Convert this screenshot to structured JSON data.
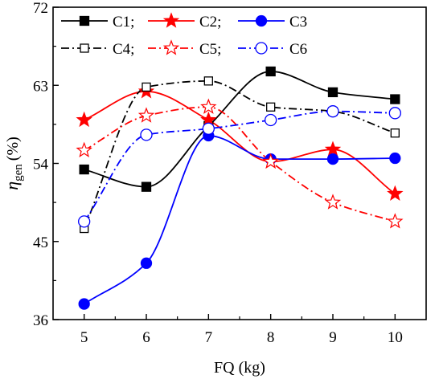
{
  "chart_data": {
    "type": "line",
    "xlabel": "FQ (kg)",
    "ylabel_main": "η",
    "ylabel_sub": "gen",
    "ylabel_unit": "(%)",
    "x": [
      5,
      6,
      7,
      8,
      9,
      10
    ],
    "xlim": [
      4.5,
      10.5
    ],
    "ylim": [
      36,
      72
    ],
    "yticks": [
      36,
      45,
      54,
      63,
      72
    ],
    "xticks": [
      5,
      6,
      7,
      8,
      9,
      10
    ],
    "legend_position": "top",
    "series": [
      {
        "name": "C1;",
        "color": "#000000",
        "marker": "square",
        "filled": true,
        "line_style": "solid",
        "values": [
          53.3,
          51.3,
          58.3,
          64.6,
          62.2,
          61.4
        ]
      },
      {
        "name": "C2;",
        "color": "#ff0000",
        "marker": "star",
        "filled": true,
        "line_style": "solid",
        "values": [
          59.0,
          62.3,
          59.0,
          54.2,
          55.6,
          50.5
        ]
      },
      {
        "name": "C3",
        "color": "#0000ff",
        "marker": "circle",
        "filled": true,
        "line_style": "solid",
        "values": [
          37.8,
          42.5,
          57.2,
          54.5,
          54.5,
          54.6
        ]
      },
      {
        "name": "C4;",
        "color": "#000000",
        "marker": "square",
        "filled": false,
        "line_style": "dashdot",
        "values": [
          46.5,
          62.8,
          63.5,
          60.5,
          60.0,
          57.5
        ]
      },
      {
        "name": "C5;",
        "color": "#ff0000",
        "marker": "star",
        "filled": false,
        "line_style": "dashdot",
        "values": [
          55.5,
          59.5,
          60.5,
          54.2,
          49.5,
          47.3
        ]
      },
      {
        "name": "C6",
        "color": "#0000ff",
        "marker": "circle",
        "filled": false,
        "line_style": "dashdot",
        "values": [
          47.3,
          57.3,
          58.0,
          59.0,
          60.0,
          59.8
        ]
      }
    ]
  }
}
